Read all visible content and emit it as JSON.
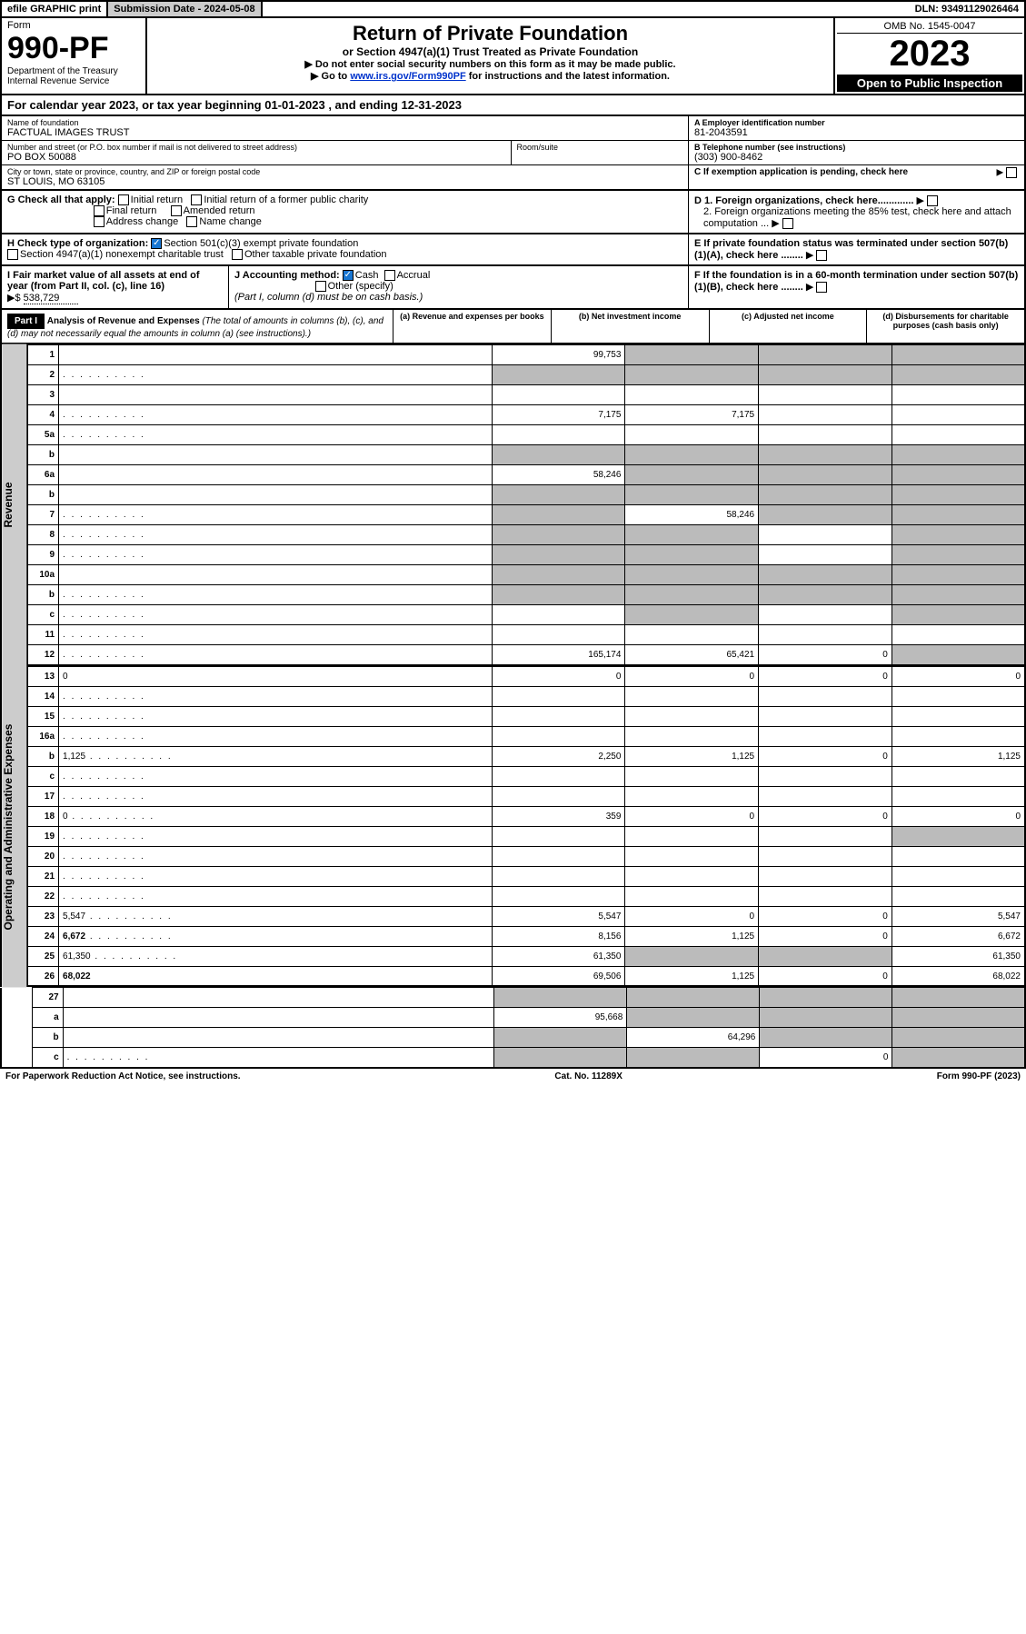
{
  "topbar": {
    "efile": "efile GRAPHIC print",
    "subdate_label": "Submission Date - ",
    "subdate": "2024-05-08",
    "dln_label": "DLN: ",
    "dln": "93491129026464"
  },
  "header": {
    "form_label": "Form",
    "formno": "990-PF",
    "dept1": "Department of the Treasury",
    "dept2": "Internal Revenue Service",
    "title": "Return of Private Foundation",
    "subtitle": "or Section 4947(a)(1) Trust Treated as Private Foundation",
    "instr1": "▶ Do not enter social security numbers on this form as it may be made public.",
    "instr2": "▶ Go to www.irs.gov/Form990PF for instructions and the latest information.",
    "omb": "OMB No. 1545-0047",
    "year": "2023",
    "openpub": "Open to Public Inspection"
  },
  "cal": {
    "text": "For calendar year 2023, or tax year beginning 01-01-2023           , and ending 12-31-2023"
  },
  "info": {
    "name_lbl": "Name of foundation",
    "name": "FACTUAL IMAGES TRUST",
    "ein_lbl": "A Employer identification number",
    "ein": "81-2043591",
    "addr_lbl": "Number and street (or P.O. box number if mail is not delivered to street address)",
    "addr": "PO BOX 50088",
    "room_lbl": "Room/suite",
    "tel_lbl": "B Telephone number (see instructions)",
    "tel": "(303) 900-8462",
    "city_lbl": "City or town, state or province, country, and ZIP or foreign postal code",
    "city": "ST LOUIS, MO  63105",
    "c_lbl": "C If exemption application is pending, check here"
  },
  "checks": {
    "g_lbl": "G Check all that apply:",
    "initial": "Initial return",
    "initial_former": "Initial return of a former public charity",
    "final": "Final return",
    "amended": "Amended return",
    "addr_change": "Address change",
    "name_change": "Name change",
    "h_lbl": "H Check type of organization:",
    "h_501c3": "Section 501(c)(3) exempt private foundation",
    "h_4947": "Section 4947(a)(1) nonexempt charitable trust",
    "h_other": "Other taxable private foundation",
    "i_lbl": "I Fair market value of all assets at end of year (from Part II, col. (c), line 16)",
    "i_val": "538,729",
    "j_lbl": "J Accounting method:",
    "j_cash": "Cash",
    "j_accrual": "Accrual",
    "j_other": "Other (specify)",
    "j_note": "(Part I, column (d) must be on cash basis.)",
    "d1": "D 1. Foreign organizations, check here.............",
    "d2": "2. Foreign organizations meeting the 85% test, check here and attach computation ...",
    "e": "E If private foundation status was terminated under section 507(b)(1)(A), check here ........",
    "f": "F If the foundation is in a 60-month termination under section 507(b)(1)(B), check here ........"
  },
  "part1": {
    "hdr": "Part I",
    "title": "Analysis of Revenue and Expenses",
    "note": "(The total of amounts in columns (b), (c), and (d) may not necessarily equal the amounts in column (a) (see instructions).)",
    "col_a": "(a)  Revenue and expenses per books",
    "col_b": "(b)  Net investment income",
    "col_c": "(c)  Adjusted net income",
    "col_d": "(d)  Disbursements for charitable purposes (cash basis only)"
  },
  "sections": {
    "revenue": "Revenue",
    "opex": "Operating and Administrative Expenses"
  },
  "rows": [
    {
      "n": "1",
      "d": "",
      "a": "99,753",
      "b": "",
      "c": "",
      "sb": true,
      "sc": true,
      "sd": true
    },
    {
      "n": "2",
      "d": "",
      "a": "",
      "b": "",
      "c": "",
      "sa": true,
      "sb": true,
      "sc": true,
      "sd": true,
      "dots": true
    },
    {
      "n": "3",
      "d": "",
      "a": "",
      "b": "",
      "c": ""
    },
    {
      "n": "4",
      "d": "",
      "a": "7,175",
      "b": "7,175",
      "c": "",
      "dots": true
    },
    {
      "n": "5a",
      "d": "",
      "a": "",
      "b": "",
      "c": "",
      "dots": true
    },
    {
      "n": "b",
      "d": "",
      "a": "",
      "b": "",
      "c": "",
      "sa": true,
      "sb": true,
      "sc": true,
      "sd": true
    },
    {
      "n": "6a",
      "d": "",
      "a": "58,246",
      "b": "",
      "c": "",
      "sb": true,
      "sc": true,
      "sd": true
    },
    {
      "n": "b",
      "d": "",
      "a": "",
      "b": "",
      "c": "",
      "sa": true,
      "sb": true,
      "sc": true,
      "sd": true
    },
    {
      "n": "7",
      "d": "",
      "a": "",
      "b": "58,246",
      "c": "",
      "sa": true,
      "sc": true,
      "sd": true,
      "dots": true
    },
    {
      "n": "8",
      "d": "",
      "a": "",
      "b": "",
      "c": "",
      "sa": true,
      "sb": true,
      "sd": true,
      "dots": true
    },
    {
      "n": "9",
      "d": "",
      "a": "",
      "b": "",
      "c": "",
      "sa": true,
      "sb": true,
      "sd": true,
      "dots": true
    },
    {
      "n": "10a",
      "d": "",
      "a": "",
      "b": "",
      "c": "",
      "sa": true,
      "sb": true,
      "sc": true,
      "sd": true
    },
    {
      "n": "b",
      "d": "",
      "a": "",
      "b": "",
      "c": "",
      "sa": true,
      "sb": true,
      "sc": true,
      "sd": true,
      "dots": true
    },
    {
      "n": "c",
      "d": "",
      "a": "",
      "b": "",
      "c": "",
      "sb": true,
      "sd": true,
      "dots": true
    },
    {
      "n": "11",
      "d": "",
      "a": "",
      "b": "",
      "c": "",
      "dots": true
    },
    {
      "n": "12",
      "d": "",
      "a": "165,174",
      "b": "65,421",
      "c": "0",
      "bold": true,
      "sd": true,
      "dots": true
    }
  ],
  "exprows": [
    {
      "n": "13",
      "d": "0",
      "a": "0",
      "b": "0",
      "c": "0"
    },
    {
      "n": "14",
      "d": "",
      "a": "",
      "b": "",
      "c": "",
      "dots": true
    },
    {
      "n": "15",
      "d": "",
      "a": "",
      "b": "",
      "c": "",
      "dots": true
    },
    {
      "n": "16a",
      "d": "",
      "a": "",
      "b": "",
      "c": "",
      "dots": true
    },
    {
      "n": "b",
      "d": "1,125",
      "a": "2,250",
      "b": "1,125",
      "c": "0",
      "dots": true
    },
    {
      "n": "c",
      "d": "",
      "a": "",
      "b": "",
      "c": "",
      "dots": true
    },
    {
      "n": "17",
      "d": "",
      "a": "",
      "b": "",
      "c": "",
      "dots": true
    },
    {
      "n": "18",
      "d": "0",
      "a": "359",
      "b": "0",
      "c": "0",
      "dots": true
    },
    {
      "n": "19",
      "d": "",
      "a": "",
      "b": "",
      "c": "",
      "sd": true,
      "dots": true
    },
    {
      "n": "20",
      "d": "",
      "a": "",
      "b": "",
      "c": "",
      "dots": true
    },
    {
      "n": "21",
      "d": "",
      "a": "",
      "b": "",
      "c": "",
      "dots": true
    },
    {
      "n": "22",
      "d": "",
      "a": "",
      "b": "",
      "c": "",
      "dots": true
    },
    {
      "n": "23",
      "d": "5,547",
      "a": "5,547",
      "b": "0",
      "c": "0",
      "dots": true
    },
    {
      "n": "24",
      "d": "6,672",
      "a": "8,156",
      "b": "1,125",
      "c": "0",
      "bold": true,
      "dots": true
    },
    {
      "n": "25",
      "d": "61,350",
      "a": "61,350",
      "b": "",
      "c": "",
      "sb": true,
      "sc": true,
      "dots": true
    },
    {
      "n": "26",
      "d": "68,022",
      "a": "69,506",
      "b": "1,125",
      "c": "0",
      "bold": true
    }
  ],
  "botrows": [
    {
      "n": "27",
      "d": "",
      "a": "",
      "b": "",
      "c": "",
      "sa": true,
      "sb": true,
      "sc": true,
      "sd": true
    },
    {
      "n": "a",
      "d": "",
      "a": "95,668",
      "b": "",
      "c": "",
      "bold": true,
      "sb": true,
      "sc": true,
      "sd": true
    },
    {
      "n": "b",
      "d": "",
      "a": "",
      "b": "64,296",
      "c": "",
      "bold": true,
      "sa": true,
      "sc": true,
      "sd": true
    },
    {
      "n": "c",
      "d": "",
      "a": "",
      "b": "",
      "c": "0",
      "bold": true,
      "sa": true,
      "sb": true,
      "sd": true,
      "dots": true
    }
  ],
  "footer": {
    "left": "For Paperwork Reduction Act Notice, see instructions.",
    "mid": "Cat. No. 11289X",
    "right": "Form 990-PF (2023)"
  }
}
